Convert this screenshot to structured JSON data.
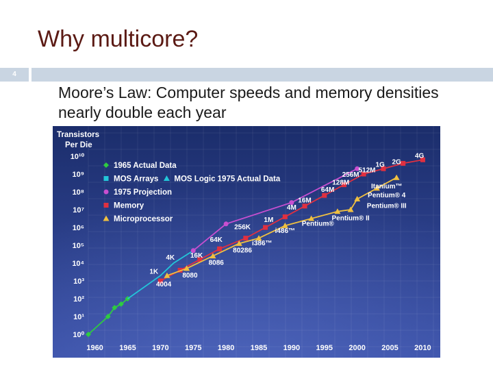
{
  "slide": {
    "title": "Why multicore?",
    "number": "4",
    "bullet": "Moore’s Law: Computer speeds and memory densities nearly double each year"
  },
  "colors": {
    "title": "#5b1a14",
    "accent_bar": "#c9d5e2",
    "chart_bg_top": "#1b2d6b",
    "chart_bg_bottom": "#3b51a8",
    "actual_1965": "#2ecc40",
    "mos_arrays": "#22c6d9",
    "projection_1975": "#c84fd0",
    "memory": "#e03040",
    "microprocessor": "#f0c040"
  },
  "chart_data": {
    "type": "scatter",
    "title": "",
    "ylabel": "Transistors Per Die",
    "xlabel": "",
    "y_scale": "log",
    "x_ticks": [
      "1960",
      "1965",
      "1970",
      "1975",
      "1980",
      "1985",
      "1990",
      "1995",
      "2000",
      "2005",
      "2010"
    ],
    "y_ticks": [
      "10⁰",
      "10¹",
      "10²",
      "10³",
      "10⁴",
      "10⁵",
      "10⁶",
      "10⁷",
      "10⁸",
      "10⁹",
      "10¹⁰"
    ],
    "xlim": [
      1959,
      2011
    ],
    "ylim_log10": [
      0,
      10
    ],
    "legend_position": "top-left",
    "legend": [
      {
        "label": "1965 Actual Data",
        "marker": "diamond",
        "color": "#2ecc40"
      },
      {
        "label": "MOS Arrays",
        "marker": "square",
        "color": "#22c6d9"
      },
      {
        "label": "MOS Logic 1975 Actual Data",
        "marker": "triangle",
        "color": "#22c6d9"
      },
      {
        "label": "1975 Projection",
        "marker": "circle",
        "color": "#c84fd0"
      },
      {
        "label": "Memory",
        "marker": "square",
        "color": "#e03040"
      },
      {
        "label": "Microprocessor",
        "marker": "triangle",
        "color": "#f0c040"
      }
    ],
    "series": [
      {
        "name": "1965 Actual Data",
        "color": "#2ecc40",
        "marker": "diamond",
        "x": [
          1959,
          1962,
          1963,
          1964,
          1965
        ],
        "log10_y": [
          0.0,
          1.0,
          1.5,
          1.7,
          2.0
        ]
      },
      {
        "name": "MOS Logic 1975 Actual Data",
        "color": "#22c6d9",
        "marker": "line",
        "x": [
          1965,
          1970,
          1972,
          1975
        ],
        "log10_y": [
          2.0,
          3.3,
          4.0,
          4.7
        ]
      },
      {
        "name": "1975 Projection",
        "color": "#c84fd0",
        "marker": "circle",
        "x": [
          1975,
          1980,
          1990,
          2000
        ],
        "log10_y": [
          4.7,
          6.2,
          7.4,
          9.3
        ]
      },
      {
        "name": "Memory",
        "color": "#e03040",
        "marker": "square",
        "x": [
          1970,
          1973,
          1976,
          1979,
          1983,
          1986,
          1989,
          1992,
          1995,
          1998,
          2001,
          2004,
          2007,
          2010
        ],
        "log10_y": [
          3.0,
          3.6,
          4.2,
          4.8,
          5.4,
          6.0,
          6.6,
          7.2,
          7.8,
          8.4,
          9.0,
          9.3,
          9.6,
          9.8
        ]
      },
      {
        "name": "Microprocessor",
        "color": "#f0c040",
        "marker": "triangle",
        "x": [
          1971,
          1974,
          1978,
          1982,
          1985,
          1989,
          1993,
          1997,
          1999,
          2000,
          2003,
          2006
        ],
        "log10_y": [
          3.3,
          3.7,
          4.4,
          5.1,
          5.4,
          6.1,
          6.5,
          6.9,
          7.0,
          7.6,
          8.2,
          8.8
        ]
      }
    ],
    "annotations": [
      {
        "text": "1K",
        "x": 1969,
        "log10_y": 3.4
      },
      {
        "text": "4K",
        "x": 1971.5,
        "log10_y": 4.2
      },
      {
        "text": "16K",
        "x": 1975.5,
        "log10_y": 4.3
      },
      {
        "text": "64K",
        "x": 1978.5,
        "log10_y": 5.2
      },
      {
        "text": "256K",
        "x": 1982.5,
        "log10_y": 5.9
      },
      {
        "text": "1M",
        "x": 1986.5,
        "log10_y": 6.3
      },
      {
        "text": "4M",
        "x": 1990,
        "log10_y": 7.0
      },
      {
        "text": "16M",
        "x": 1992,
        "log10_y": 7.4
      },
      {
        "text": "64M",
        "x": 1995.5,
        "log10_y": 8.0
      },
      {
        "text": "128M",
        "x": 1997.5,
        "log10_y": 8.4
      },
      {
        "text": "256M",
        "x": 1999,
        "log10_y": 8.85
      },
      {
        "text": "512M",
        "x": 2001.5,
        "log10_y": 9.1
      },
      {
        "text": "1G",
        "x": 2003.5,
        "log10_y": 9.4
      },
      {
        "text": "2G",
        "x": 2006,
        "log10_y": 9.55
      },
      {
        "text": "4G",
        "x": 2009.5,
        "log10_y": 9.9
      },
      {
        "text": "4004",
        "x": 1970.5,
        "log10_y": 2.7
      },
      {
        "text": "8080",
        "x": 1974.5,
        "log10_y": 3.2
      },
      {
        "text": "8086",
        "x": 1978.5,
        "log10_y": 3.9
      },
      {
        "text": "80286",
        "x": 1982.5,
        "log10_y": 4.6
      },
      {
        "text": "i386™",
        "x": 1985.5,
        "log10_y": 5.0
      },
      {
        "text": "i486™",
        "x": 1989,
        "log10_y": 5.7
      },
      {
        "text": "Pentium®",
        "x": 1994,
        "log10_y": 6.1
      },
      {
        "text": "Pentium® II",
        "x": 1999,
        "log10_y": 6.4
      },
      {
        "text": "Pentium® III",
        "x": 2004.5,
        "log10_y": 7.1
      },
      {
        "text": "Pentium® 4",
        "x": 2004.5,
        "log10_y": 7.7
      },
      {
        "text": "Itanium™",
        "x": 2004.5,
        "log10_y": 8.2
      }
    ]
  }
}
